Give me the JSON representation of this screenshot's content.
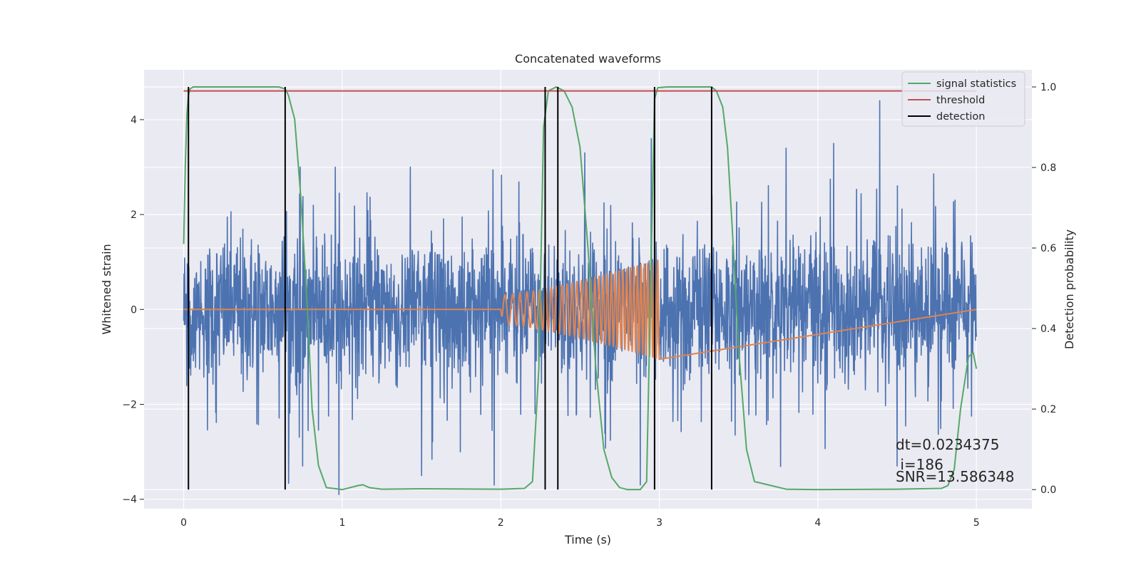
{
  "chart_data": {
    "type": "line",
    "title": "Concatenated waveforms",
    "xlabel": "Time (s)",
    "ylabel": "Whitened strain",
    "y2label": "Detection probability",
    "xlim": [
      -0.25,
      5.35
    ],
    "ylim": [
      -4.2,
      5.05
    ],
    "y2lim": [
      -0.0475,
      1.0425
    ],
    "x_ticks": [
      0,
      1,
      2,
      3,
      4,
      5
    ],
    "x_tick_labels": [
      "0",
      "1",
      "2",
      "3",
      "4",
      "5"
    ],
    "y_ticks": [
      -4,
      -2,
      0,
      2,
      4
    ],
    "y_tick_labels": [
      "−4",
      "−2",
      "0",
      "2",
      "4"
    ],
    "y2_ticks": [
      0.0,
      0.2,
      0.4,
      0.6,
      0.8,
      1.0
    ],
    "y2_tick_labels": [
      "0.0",
      "0.2",
      "0.4",
      "0.6",
      "0.8",
      "1.0"
    ],
    "grid": true,
    "legend_position": "top-right",
    "colors": {
      "strain": "#4c72b0",
      "waveform": "#dd8452",
      "signal_statistics": "#55a868",
      "threshold": "#c44e52",
      "detection": "#000000",
      "plot_bg": "#eaeaf2",
      "grid": "#ffffff"
    },
    "series": [
      {
        "name": "",
        "axis": "left",
        "kind": "noise",
        "x_range": [
          0,
          5
        ],
        "envelope_upper": 1.7,
        "envelope_lower": -1.8,
        "peak_range": [
          -4.0,
          4.4
        ],
        "notable_spikes": [
          {
            "x": 4.39,
            "y": 4.4
          },
          {
            "x": 0.98,
            "y": -3.9
          },
          {
            "x": 2.88,
            "y": -3.7
          },
          {
            "x": 1.5,
            "y": -3.5
          },
          {
            "x": 0.75,
            "y": -3.3
          },
          {
            "x": 4.5,
            "y": -3.3
          },
          {
            "x": 2.95,
            "y": 3.6
          },
          {
            "x": 2.53,
            "y": 3.3
          },
          {
            "x": 3.8,
            "y": 3.4
          },
          {
            "x": 4.1,
            "y": 3.5
          }
        ]
      },
      {
        "name": "",
        "axis": "left",
        "kind": "chirp",
        "x_range": [
          0,
          5
        ],
        "chirp_start": 2.0,
        "chirp_end": 3.0,
        "amplitude_start": 0.3,
        "amplitude_end": 1.05,
        "cycles": 34
      },
      {
        "name": "signal statistics",
        "axis": "right",
        "x": [
          0.0,
          0.01,
          0.02,
          0.03,
          0.04,
          0.06,
          0.1,
          0.6,
          0.64,
          0.66,
          0.7,
          0.74,
          0.78,
          0.81,
          0.85,
          0.9,
          1.0,
          1.1,
          1.13,
          1.17,
          1.25,
          1.5,
          2.0,
          2.15,
          2.2,
          2.24,
          2.27,
          2.3,
          2.35,
          2.4,
          2.45,
          2.5,
          2.55,
          2.6,
          2.65,
          2.7,
          2.75,
          2.8,
          2.88,
          2.92,
          2.95,
          2.97,
          2.99,
          3.05,
          3.33,
          3.36,
          3.4,
          3.43,
          3.46,
          3.5,
          3.55,
          3.6,
          3.8,
          4.0,
          4.5,
          4.78,
          4.82,
          4.86,
          4.9,
          4.95,
          4.98,
          5.0
        ],
        "y": [
          0.61,
          0.8,
          0.93,
          0.98,
          0.995,
          1.0,
          1.0,
          1.0,
          0.995,
          0.98,
          0.92,
          0.72,
          0.45,
          0.2,
          0.06,
          0.005,
          0.0,
          0.01,
          0.012,
          0.005,
          0.001,
          0.002,
          0.001,
          0.003,
          0.02,
          0.3,
          0.9,
          0.99,
          1.0,
          0.99,
          0.95,
          0.85,
          0.6,
          0.3,
          0.1,
          0.03,
          0.005,
          0.0,
          0.0,
          0.02,
          0.6,
          0.97,
          0.998,
          1.0,
          1.0,
          0.99,
          0.95,
          0.85,
          0.65,
          0.35,
          0.1,
          0.02,
          0.001,
          0.0,
          0.001,
          0.003,
          0.01,
          0.05,
          0.2,
          0.33,
          0.34,
          0.3
        ]
      },
      {
        "name": "threshold",
        "axis": "right",
        "x": [
          0.0,
          5.0
        ],
        "y": [
          0.99,
          0.99
        ]
      },
      {
        "name": "detection",
        "axis": "right",
        "kind": "vertical_lines",
        "x": [
          0.03,
          0.64,
          2.28,
          2.36,
          2.97,
          3.33
        ],
        "y_range": [
          0.0,
          1.0
        ]
      }
    ],
    "legend": [
      "signal statistics",
      "threshold",
      "detection"
    ],
    "annotations": [
      "dt=0.0234375",
      " i=186",
      "SNR=13.586348"
    ]
  }
}
